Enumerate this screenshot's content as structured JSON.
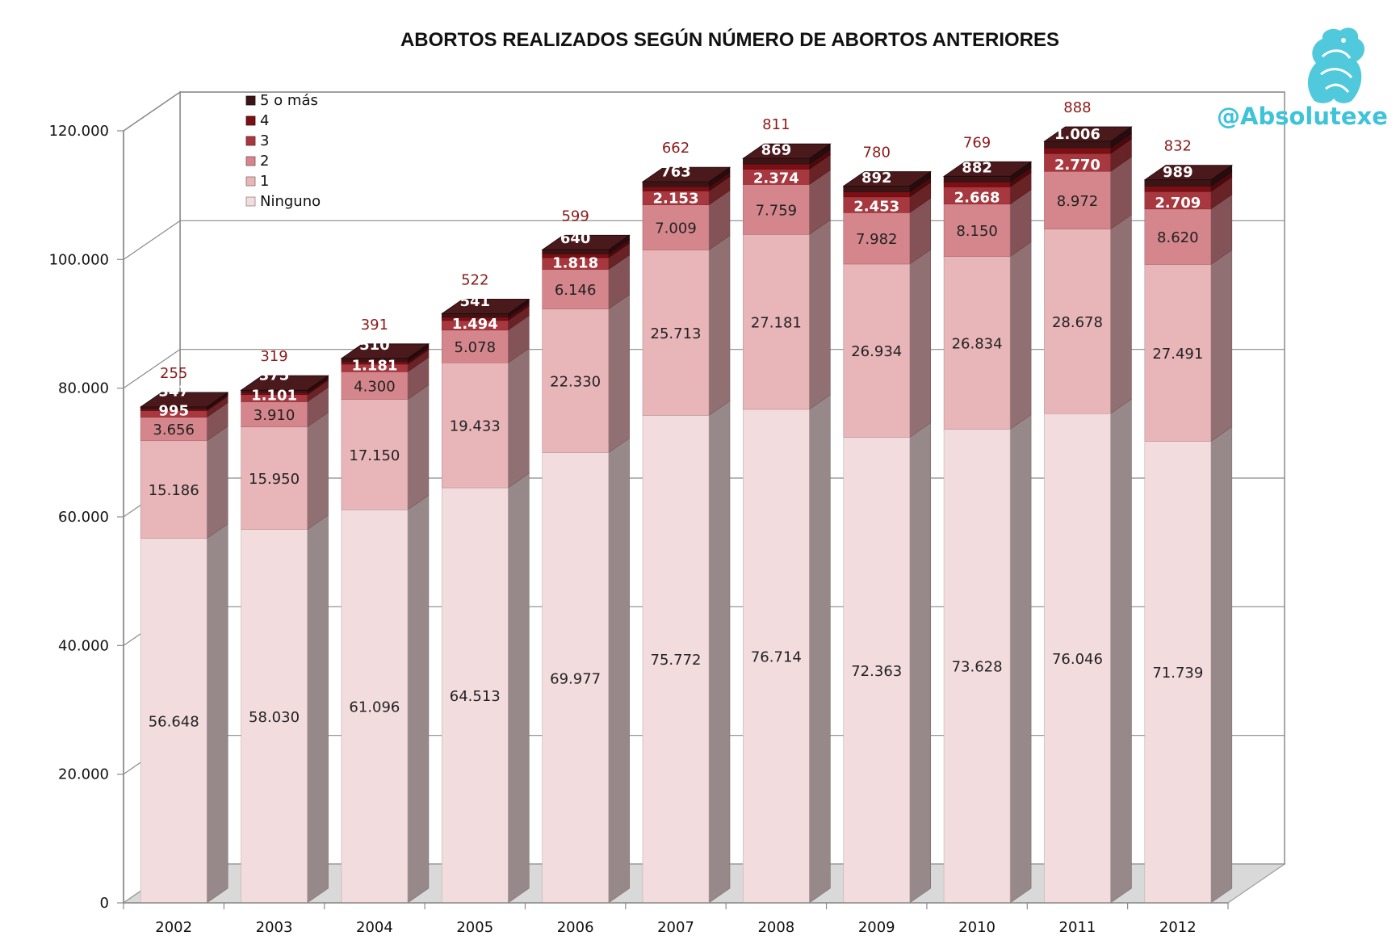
{
  "chart_data": {
    "type": "bar",
    "stacked": true,
    "three_d": true,
    "title": "ABORTOS REALIZADOS SEGÚN NÚMERO DE ABORTOS ANTERIORES",
    "categories": [
      "2002",
      "2003",
      "2004",
      "2005",
      "2006",
      "2007",
      "2008",
      "2009",
      "2010",
      "2011",
      "2012"
    ],
    "ylim": [
      0,
      120000
    ],
    "y_ticks": [
      0,
      20000,
      40000,
      60000,
      80000,
      100000,
      120000
    ],
    "y_tick_labels": [
      "0",
      "20.000",
      "40.000",
      "60.000",
      "80.000",
      "100.000",
      "120.000"
    ],
    "grid": true,
    "legend_position": "top-left",
    "series": [
      {
        "name": "Ninguno",
        "color": "#f3dcde",
        "label_color": "#222222",
        "values": [
          56648,
          58030,
          61096,
          64513,
          69977,
          75772,
          76714,
          72363,
          73628,
          76046,
          71739
        ],
        "labels": [
          "56.648",
          "58.030",
          "61.096",
          "64.513",
          "69.977",
          "75.772",
          "76.714",
          "72.363",
          "73.628",
          "76.046",
          "71.739"
        ]
      },
      {
        "name": "1",
        "color": "#e8b5b9",
        "label_color": "#222222",
        "values": [
          15186,
          15950,
          17150,
          19433,
          22330,
          25713,
          27181,
          26934,
          26834,
          28678,
          27491
        ],
        "labels": [
          "15.186",
          "15.950",
          "17.150",
          "19.433",
          "22.330",
          "25.713",
          "27.181",
          "26.934",
          "26.834",
          "28.678",
          "27.491"
        ]
      },
      {
        "name": "2",
        "color": "#d4868c",
        "label_color": "#222222",
        "values": [
          3656,
          3910,
          4300,
          5078,
          6146,
          7009,
          7759,
          7982,
          8150,
          8972,
          8620
        ],
        "labels": [
          "3.656",
          "3.910",
          "4.300",
          "5.078",
          "6.146",
          "7.009",
          "7.759",
          "7.982",
          "8.150",
          "8.972",
          "8.620"
        ]
      },
      {
        "name": "3",
        "color": "#a8383f",
        "label_color": "#ffffff",
        "values": [
          995,
          1101,
          1181,
          1494,
          1818,
          2153,
          2374,
          2453,
          2668,
          2770,
          2709
        ],
        "labels": [
          "995",
          "1.101",
          "1.181",
          "1.494",
          "1.818",
          "2.153",
          "2.374",
          "2.453",
          "2.668",
          "2.770",
          "2.709"
        ]
      },
      {
        "name": "4",
        "color": "#7a0f14",
        "label_color": "#8b1a1a",
        "values": [
          255,
          319,
          391,
          522,
          599,
          662,
          811,
          780,
          769,
          888,
          832
        ],
        "labels": [
          "255",
          "319",
          "391",
          "522",
          "599",
          "662",
          "811",
          "780",
          "769",
          "888",
          "832"
        ]
      },
      {
        "name": "5 o más",
        "color": "#3b1416",
        "label_color": "#ffffff",
        "values": [
          347,
          375,
          510,
          541,
          640,
          763,
          869,
          892,
          882,
          1006,
          989
        ],
        "labels": [
          "347",
          "375",
          "510",
          "541",
          "640",
          "763",
          "869",
          "892",
          "882",
          "1.006",
          "989"
        ]
      }
    ]
  },
  "legend_order": [
    "5 o más",
    "4",
    "3",
    "2",
    "1",
    "Ninguno"
  ],
  "brand": {
    "handle": "@Absolutexe",
    "logo_icon": "griffin-logo-icon",
    "color": "#3ec3d8"
  }
}
